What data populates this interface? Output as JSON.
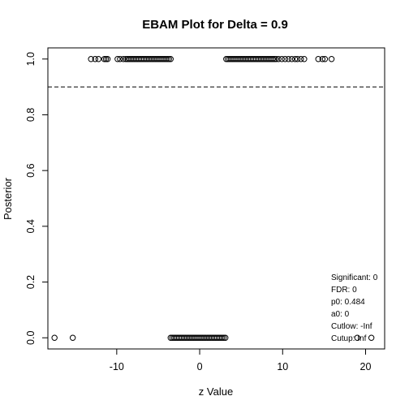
{
  "chart_data": {
    "type": "scatter",
    "title": "EBAM Plot for Delta = 0.9",
    "xlabel": "z Value",
    "ylabel": "Posterior",
    "xlim": [
      -18.3,
      22.3
    ],
    "ylim": [
      -0.04,
      1.04
    ],
    "xticks": [
      -10,
      0,
      10,
      20
    ],
    "yticks": [
      0.0,
      0.2,
      0.4,
      0.6,
      0.8,
      1.0
    ],
    "xtick_labels": [
      "-10",
      "0",
      "10",
      "20"
    ],
    "ytick_labels": [
      "0.0",
      "0.2",
      "0.4",
      "0.6",
      "0.8",
      "1.0"
    ],
    "threshold": {
      "y": 0.9,
      "style": "dashed"
    },
    "marker": "open-circle",
    "grid": false,
    "series": [
      {
        "values_y": 1.0,
        "x": [
          -13.1,
          -12.6,
          -12.2,
          -11.5,
          -11.3,
          -11.1,
          -9.9,
          -9.6,
          -9.2,
          -8.9,
          -8.7,
          -8.5,
          -8.3,
          -8.1,
          -7.9,
          -7.7,
          -7.5,
          -7.3,
          -7.1,
          -6.9,
          -6.7,
          -6.5,
          -6.3,
          -6.1,
          -5.9,
          -5.7,
          -5.5,
          -5.3,
          -5.1,
          -4.9,
          -4.7,
          -4.5,
          -4.3,
          -4.1,
          -3.9,
          -3.7,
          -3.5,
          3.2,
          3.4,
          3.6,
          3.8,
          4.0,
          4.2,
          4.4,
          4.6,
          4.8,
          5.0,
          5.2,
          5.4,
          5.6,
          5.8,
          6.0,
          6.2,
          6.4,
          6.6,
          6.8,
          7.0,
          7.2,
          7.4,
          7.6,
          7.8,
          8.0,
          8.2,
          8.4,
          8.6,
          8.8,
          9.0,
          9.2,
          9.5,
          9.9,
          10.3,
          10.7,
          11.1,
          11.5,
          11.8,
          12.2,
          12.6,
          14.3,
          14.8,
          15.1,
          15.9
        ]
      },
      {
        "values_y": 0.0,
        "x": [
          -17.5,
          -15.3,
          -3.5,
          -3.3,
          -3.1,
          -2.9,
          -2.7,
          -2.5,
          -2.3,
          -2.1,
          -1.9,
          -1.7,
          -1.5,
          -1.3,
          -1.1,
          -0.9,
          -0.7,
          -0.5,
          -0.3,
          -0.1,
          0.1,
          0.3,
          0.5,
          0.7,
          0.9,
          1.1,
          1.3,
          1.5,
          1.7,
          1.9,
          2.1,
          2.3,
          2.5,
          2.7,
          2.9,
          3.1,
          19.0,
          20.7
        ]
      }
    ],
    "legend": {
      "placement": "bottom-right",
      "lines": [
        "Significant:  0",
        "FDR:  0",
        "p0:  0.484",
        "a0:  0",
        "Cutlow:  -Inf",
        "Cutup:  Inf"
      ]
    }
  }
}
